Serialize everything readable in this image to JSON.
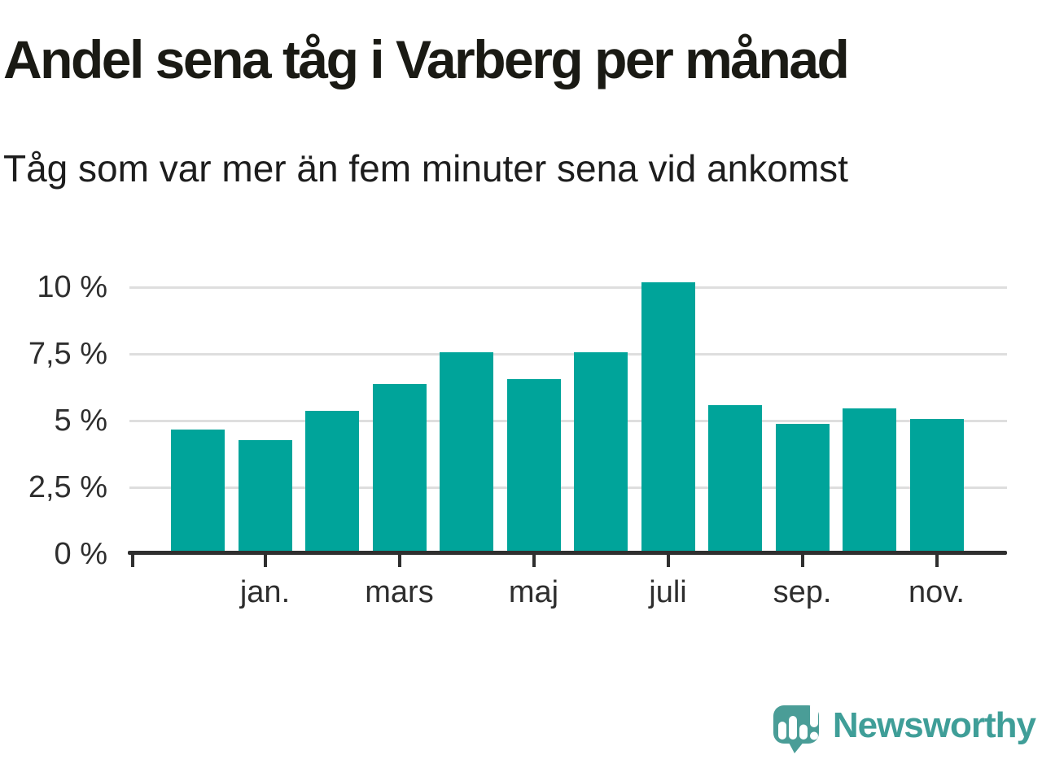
{
  "page": {
    "background": "#ffffff"
  },
  "chart_data": {
    "type": "bar",
    "title": "Andel sena tåg i Varberg per månad",
    "subtitle": "Tåg som var mer än fem minuter sena vid ankomst",
    "unit": "%",
    "n_bars": 12,
    "values": [
      4.7,
      4.3,
      5.4,
      6.4,
      7.6,
      6.6,
      7.6,
      10.2,
      5.6,
      4.9,
      5.5,
      5.1
    ],
    "x_tick_labels": [
      "jan.",
      "mars",
      "maj",
      "juli",
      "sep.",
      "nov."
    ],
    "x_tick_bar_indexes": [
      1,
      3,
      5,
      7,
      9,
      11
    ],
    "y_tick_labels": [
      "0 %",
      "2,5 %",
      "5 %",
      "7,5 %",
      "10 %"
    ],
    "y_tick_values": [
      0,
      2.5,
      5,
      7.5,
      10
    ],
    "ylim": [
      0,
      10.5
    ],
    "grid": "horizontal-only",
    "legend": "none",
    "bar_color": "#00a49a",
    "axis_color": "#2f2f2f",
    "grid_color": "#dedede",
    "label_color": "#2e2e2e"
  },
  "branding": {
    "logo_text": "Newsworthy",
    "logo_color": "#3f9e98",
    "logo_bubble_color": "#4a9d97",
    "logo_icon": "speech-bubble-bar-chart-exclamation"
  }
}
